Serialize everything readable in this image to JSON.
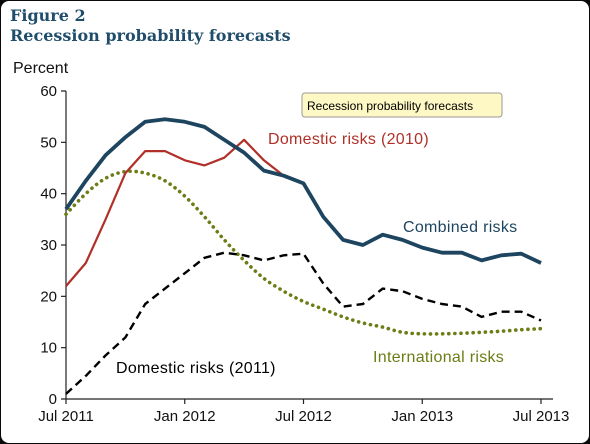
{
  "figure": {
    "number": "Figure 2",
    "title": "Recession probability forecasts"
  },
  "tooltip": "Recession probability forecasts",
  "chart_data": {
    "type": "line",
    "title": "Recession probability forecasts",
    "ylabel": "Percent",
    "xlabel": "",
    "ylim": [
      0,
      60
    ],
    "yticks": [
      0,
      10,
      20,
      30,
      40,
      50,
      60
    ],
    "xlim": [
      0,
      24
    ],
    "xticks": [
      {
        "x": 0,
        "label": "Jul 2011"
      },
      {
        "x": 6,
        "label": "Jan 2012"
      },
      {
        "x": 12,
        "label": "Jul 2012"
      },
      {
        "x": 18,
        "label": "Jan 2013"
      },
      {
        "x": 24,
        "label": "Jul 2013"
      }
    ],
    "grid": false,
    "series": [
      {
        "name": "Combined risks",
        "color": "#1e4560",
        "style": "solid",
        "points": [
          [
            0,
            37
          ],
          [
            1,
            42.5
          ],
          [
            2,
            47.5
          ],
          [
            3,
            51
          ],
          [
            4,
            54
          ],
          [
            5,
            54.5
          ],
          [
            6,
            54
          ],
          [
            7,
            53
          ],
          [
            8,
            50.5
          ],
          [
            9,
            48
          ],
          [
            10,
            44.5
          ],
          [
            11,
            43.5
          ],
          [
            12,
            42
          ],
          [
            13,
            35.5
          ],
          [
            14,
            31
          ],
          [
            15,
            30
          ],
          [
            16,
            32
          ],
          [
            17,
            31
          ],
          [
            18,
            29.5
          ],
          [
            19,
            28.5
          ],
          [
            20,
            28.5
          ],
          [
            21,
            27
          ],
          [
            22,
            28
          ],
          [
            23,
            28.3
          ],
          [
            24,
            26.5
          ]
        ]
      },
      {
        "name": "Domestic risks (2010)",
        "color": "#b03028",
        "style": "solid",
        "points": [
          [
            0,
            22
          ],
          [
            1,
            26.5
          ],
          [
            2,
            35
          ],
          [
            3,
            44
          ],
          [
            4,
            48.3
          ],
          [
            5,
            48.3
          ],
          [
            6,
            46.5
          ],
          [
            7,
            45.5
          ],
          [
            8,
            47
          ],
          [
            9,
            50.5
          ],
          [
            10,
            46.5
          ],
          [
            11,
            43.5
          ]
        ]
      },
      {
        "name": "Domestic risks (2011)",
        "color": "#000000",
        "style": "dashed",
        "points": [
          [
            0,
            1
          ],
          [
            1,
            4.5
          ],
          [
            2,
            8.5
          ],
          [
            3,
            12
          ],
          [
            4,
            18.5
          ],
          [
            5,
            21.5
          ],
          [
            6,
            24.5
          ],
          [
            7,
            27.5
          ],
          [
            8,
            28.5
          ],
          [
            9,
            28
          ],
          [
            10,
            27
          ],
          [
            11,
            28
          ],
          [
            12,
            28.3
          ],
          [
            13,
            22.5
          ],
          [
            14,
            18
          ],
          [
            15,
            18.5
          ],
          [
            16,
            21.5
          ],
          [
            17,
            21
          ],
          [
            18,
            19.5
          ],
          [
            19,
            18.5
          ],
          [
            20,
            18
          ],
          [
            21,
            16
          ],
          [
            22,
            17
          ],
          [
            23,
            17
          ],
          [
            24,
            15.3
          ]
        ]
      },
      {
        "name": "International risks",
        "color": "#6b7d14",
        "style": "dotted",
        "points": [
          [
            0,
            36
          ],
          [
            1,
            40
          ],
          [
            2,
            43
          ],
          [
            3,
            44.3
          ],
          [
            4,
            44
          ],
          [
            5,
            42.5
          ],
          [
            6,
            39.5
          ],
          [
            7,
            35.5
          ],
          [
            8,
            31
          ],
          [
            9,
            27
          ],
          [
            10,
            23.5
          ],
          [
            11,
            21
          ],
          [
            12,
            19
          ],
          [
            13,
            17.5
          ],
          [
            14,
            16
          ],
          [
            15,
            14.8
          ],
          [
            16,
            14
          ],
          [
            17,
            13
          ],
          [
            18,
            12.7
          ],
          [
            19,
            12.7
          ],
          [
            20,
            12.8
          ],
          [
            21,
            13
          ],
          [
            22,
            13.2
          ],
          [
            23,
            13.5
          ],
          [
            24,
            13.7
          ]
        ]
      }
    ]
  }
}
